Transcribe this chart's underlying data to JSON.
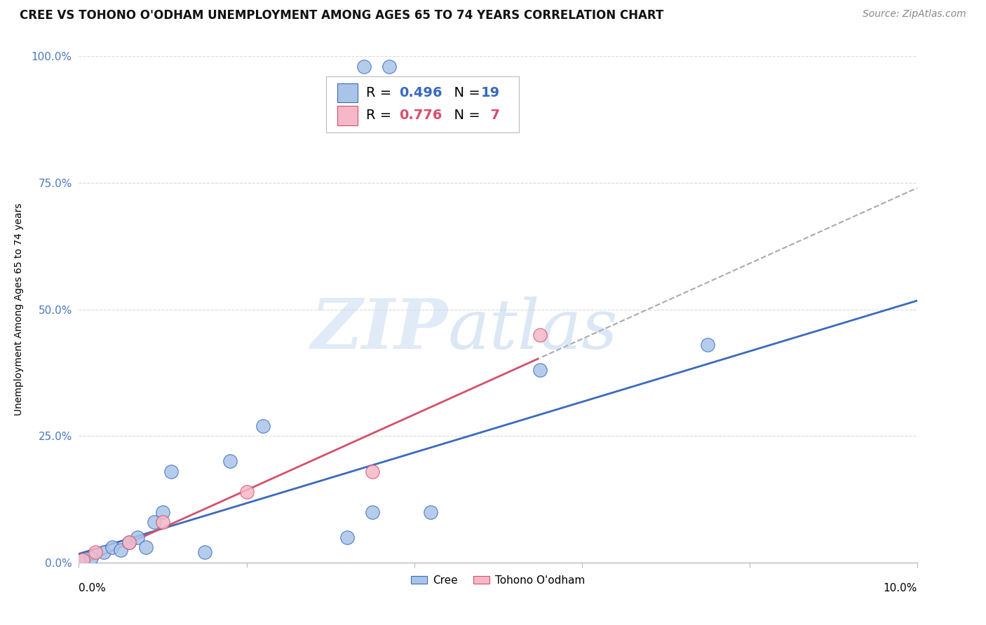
{
  "title": "CREE VS TOHONO O'ODHAM UNEMPLOYMENT AMONG AGES 65 TO 74 YEARS CORRELATION CHART",
  "source": "Source: ZipAtlas.com",
  "ylabel": "Unemployment Among Ages 65 to 74 years",
  "y_tick_labels": [
    "0.0%",
    "25.0%",
    "50.0%",
    "75.0%",
    "100.0%"
  ],
  "y_tick_values": [
    0.0,
    25.0,
    50.0,
    75.0,
    100.0
  ],
  "x_range": [
    0.0,
    10.0
  ],
  "y_range": [
    0.0,
    100.0
  ],
  "cree_color": "#aac4e8",
  "tohono_color": "#f5b8c8",
  "cree_line_color": "#3a6abf",
  "tohono_line_color": "#d4506a",
  "R_cree": "0.496",
  "N_cree": "19",
  "R_tohono": "0.776",
  "N_tohono": "7",
  "watermark_zip": "ZIP",
  "watermark_atlas": "atlas",
  "background_color": "#ffffff",
  "cree_x": [
    0.05,
    0.15,
    0.3,
    0.4,
    0.5,
    0.6,
    0.7,
    0.8,
    0.9,
    1.0,
    1.1,
    1.5,
    1.8,
    2.2,
    3.2,
    3.5,
    4.2,
    5.5,
    7.5
  ],
  "cree_y": [
    0.5,
    1.0,
    2.0,
    3.0,
    2.5,
    4.0,
    5.0,
    3.0,
    8.0,
    10.0,
    18.0,
    2.0,
    20.0,
    27.0,
    5.0,
    10.0,
    10.0,
    38.0,
    43.0
  ],
  "tohono_x": [
    0.05,
    0.2,
    0.6,
    1.0,
    2.0,
    3.5,
    5.5
  ],
  "tohono_y": [
    0.5,
    2.0,
    4.0,
    8.0,
    14.0,
    18.0,
    45.0
  ],
  "grid_color": "#d8d8d8",
  "title_fontsize": 12,
  "axis_label_fontsize": 10,
  "tick_fontsize": 11,
  "legend_fontsize": 14,
  "source_fontsize": 10
}
